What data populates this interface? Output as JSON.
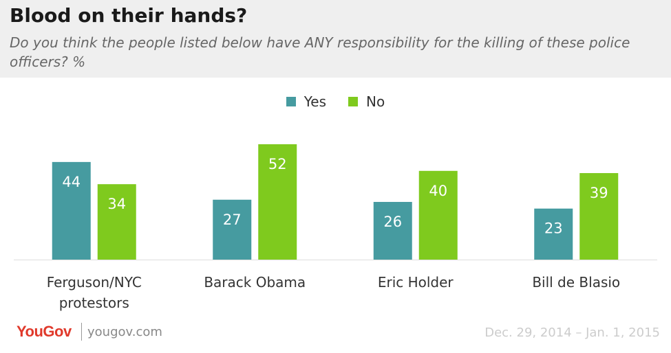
{
  "header": {
    "title": "Blood on their hands?",
    "subtitle": "Do you think the people listed below have ANY responsibility for the killing of these police officers? %"
  },
  "legend": {
    "yes_label": "Yes",
    "no_label": "No"
  },
  "colors": {
    "yes": "#469ba0",
    "no": "#7fca1e",
    "header_bg": "#efefef",
    "brand": "#e0392b"
  },
  "footer": {
    "brand": "YouGov",
    "site": "yougov.com",
    "date": "Dec. 29, 2014 – Jan. 1, 2015"
  },
  "chart_data": {
    "type": "bar",
    "categories": [
      "Ferguson/NYC protestors",
      "Barack Obama",
      "Eric Holder",
      "Bill de Blasio"
    ],
    "category_lines": [
      [
        "Ferguson/NYC",
        "protestors"
      ],
      [
        "Barack Obama"
      ],
      [
        "Eric Holder"
      ],
      [
        "Bill de Blasio"
      ]
    ],
    "series": [
      {
        "name": "Yes",
        "values": [
          44,
          27,
          26,
          23
        ]
      },
      {
        "name": "No",
        "values": [
          34,
          52,
          40,
          39
        ]
      }
    ],
    "ylim": [
      0,
      60
    ],
    "grid": false,
    "legend_position": "top-center",
    "value_labels": true
  }
}
